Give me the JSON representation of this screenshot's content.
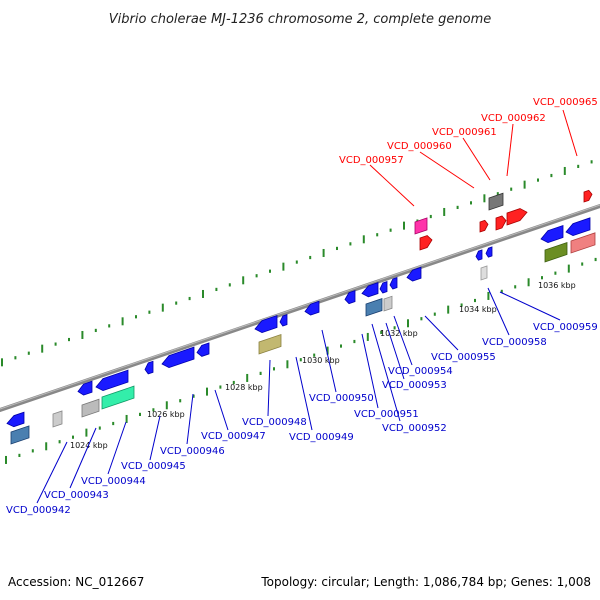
{
  "title": "Vibrio cholerae MJ-1236 chromosome 2, complete genome",
  "footer": {
    "accession": "Accession: NC_012667",
    "summary": "Topology: circular; Length: 1,086,784 bp; Genes: 1,008"
  },
  "colors": {
    "forward_label": "#ff0000",
    "reverse_label": "#0000cc",
    "backbone": "#888888",
    "tick": "#2a8a2a"
  },
  "ruler_labels": [
    "1024 kbp",
    "1026 kbp",
    "1028 kbp",
    "1030 kbp",
    "1032 kbp",
    "1034 kbp",
    "1036 kbp"
  ],
  "forward_genes": [
    "VCD_000957",
    "VCD_000960",
    "VCD_000961",
    "VCD_000962",
    "VCD_000965"
  ],
  "reverse_genes": [
    "VCD_000942",
    "VCD_000943",
    "VCD_000944",
    "VCD_000945",
    "VCD_000946",
    "VCD_000947",
    "VCD_000948",
    "VCD_000949",
    "VCD_000950",
    "VCD_000951",
    "VCD_000952",
    "VCD_000953",
    "VCD_000954",
    "VCD_000955",
    "VCD_000958",
    "VCD_000959"
  ]
}
